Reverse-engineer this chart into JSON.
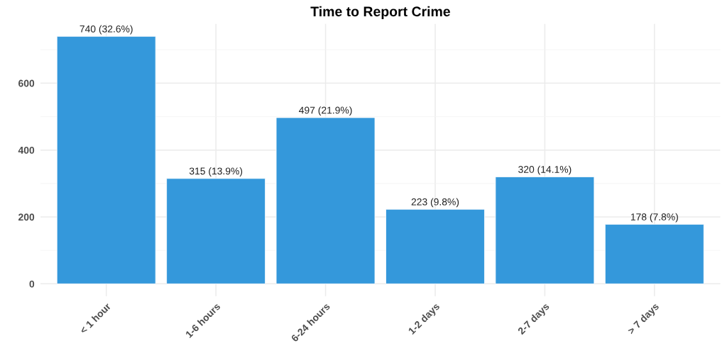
{
  "chart_data": {
    "type": "bar",
    "title": "Time to Report Crime",
    "categories": [
      "< 1 hour",
      "1-6 hours",
      "6-24 hours",
      "1-2 days",
      "2-7 days",
      "> 7 days"
    ],
    "values": [
      740,
      315,
      497,
      223,
      320,
      178
    ],
    "color": "#3498db",
    "value_labels": [
      "740 (32.6%)",
      "315 (13.9%)",
      "497 (21.9%)",
      "223 (9.8%)",
      "320 (14.1%)",
      "178 (7.8%)"
    ],
    "ylim": [
      -37,
      777
    ],
    "yticks": [
      0,
      {
        "value": 100,
        "label": null
      },
      200,
      {
        "value": 300,
        "label": null
      },
      400,
      {
        "value": 500,
        "label": null
      },
      600,
      {
        "value": 700,
        "label": null
      }
    ],
    "grid": true
  }
}
